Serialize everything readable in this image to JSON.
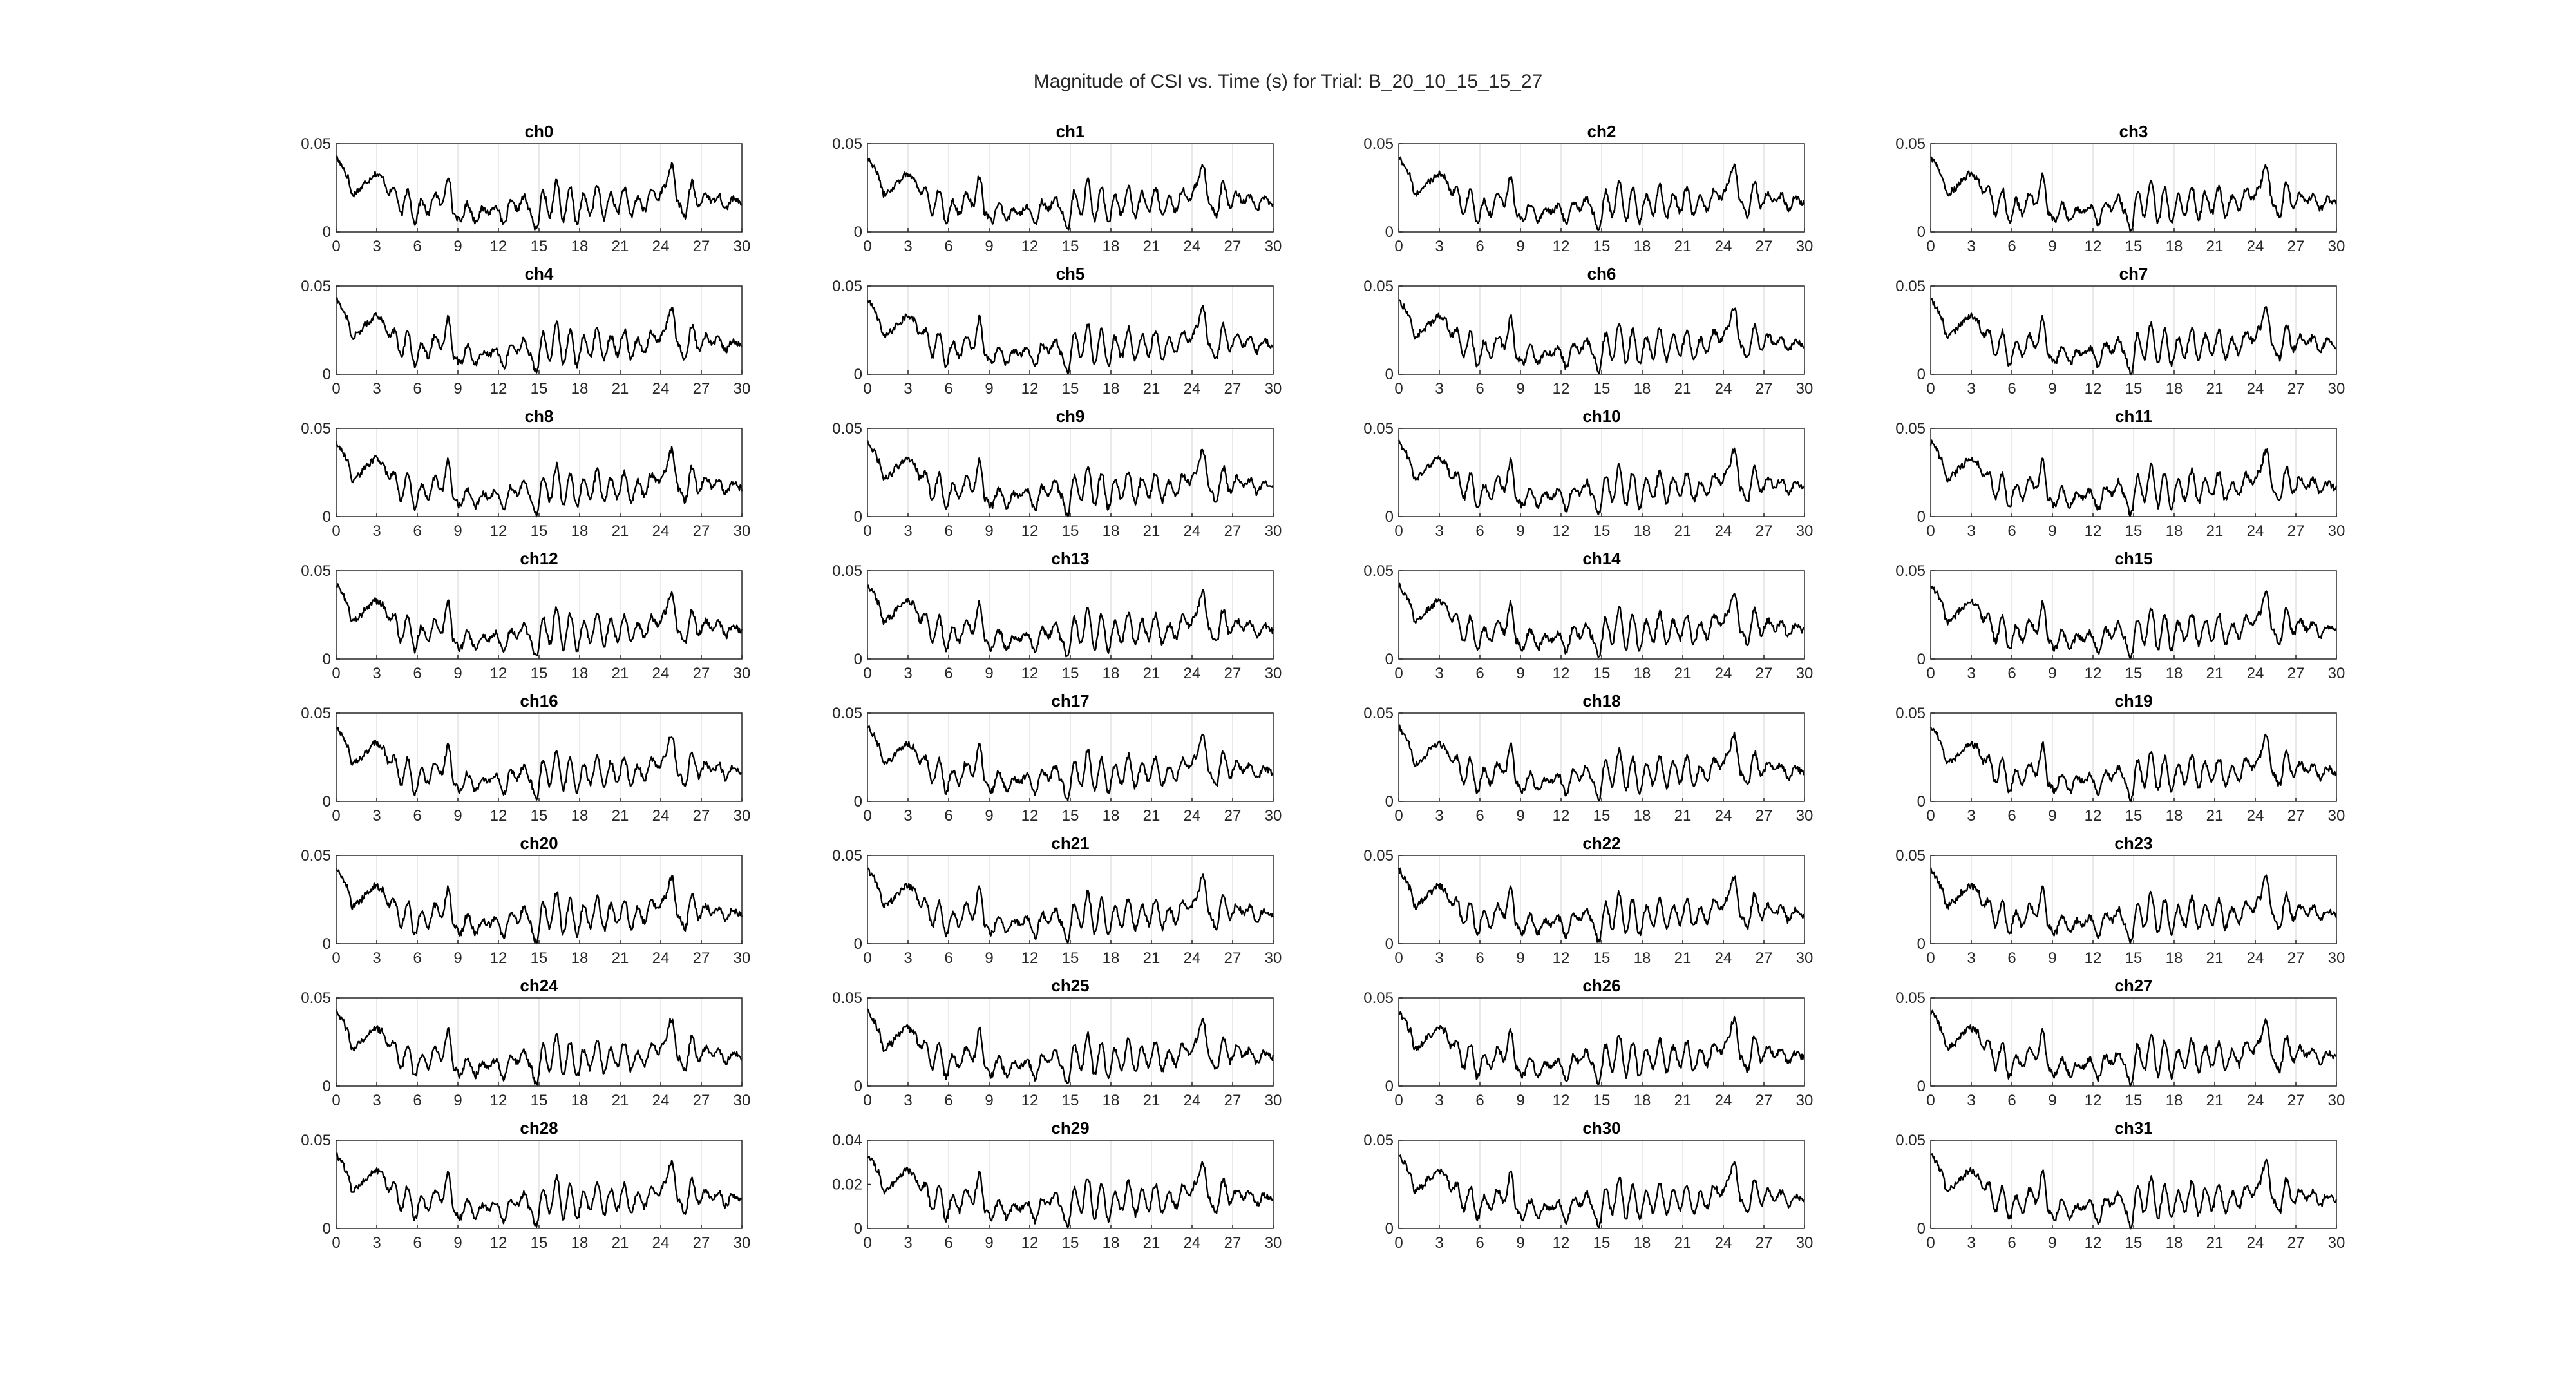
{
  "title": "Magnitude of CSI vs. Time (s) for Trial: B_20_10_15_15_27",
  "chart_data": {
    "type": "line",
    "suptitle": "Magnitude of CSI vs. Time (s) for Trial: B_20_10_15_15_27",
    "grid": "vertical gridlines at each x tick",
    "layout": "8 rows x 4 columns of subplots",
    "x": {
      "xlim": [
        0,
        30
      ],
      "xticks": [
        0,
        3,
        6,
        9,
        12,
        15,
        18,
        21,
        24,
        27,
        30
      ],
      "xtick_labels": [
        "0",
        "3",
        "6",
        "9",
        "12",
        "15",
        "18",
        "21",
        "24",
        "27",
        "30"
      ]
    },
    "shape_keypoints": {
      "t": [
        0,
        0.4,
        0.8,
        1.2,
        1.7,
        2.3,
        2.9,
        3.4,
        3.9,
        4.3,
        4.8,
        5.3,
        5.8,
        6.3,
        6.8,
        7.3,
        7.8,
        8.3,
        8.7,
        9.2,
        9.7,
        10.3,
        10.8,
        11.3,
        11.8,
        12.4,
        12.9,
        13.4,
        13.9,
        14.3,
        14.8,
        15.3,
        15.8,
        16.3,
        16.8,
        17.3,
        17.8,
        18.3,
        18.8,
        19.3,
        19.8,
        20.3,
        20.8,
        21.3,
        21.8,
        22.3,
        22.8,
        23.3,
        23.8,
        24.3,
        24.8,
        25.3,
        25.8,
        26.3,
        26.8,
        27.3,
        27.8,
        28.3,
        28.8,
        29.3,
        30
      ],
      "v": [
        0.042,
        0.038,
        0.032,
        0.021,
        0.024,
        0.029,
        0.033,
        0.031,
        0.022,
        0.025,
        0.01,
        0.024,
        0.005,
        0.018,
        0.01,
        0.022,
        0.015,
        0.032,
        0.01,
        0.006,
        0.016,
        0.006,
        0.013,
        0.011,
        0.015,
        0.004,
        0.017,
        0.013,
        0.02,
        0.012,
        0.001,
        0.023,
        0.009,
        0.029,
        0.006,
        0.025,
        0.005,
        0.021,
        0.01,
        0.026,
        0.008,
        0.022,
        0.011,
        0.025,
        0.009,
        0.02,
        0.012,
        0.024,
        0.019,
        0.026,
        0.038,
        0.016,
        0.009,
        0.028,
        0.014,
        0.022,
        0.017,
        0.021,
        0.013,
        0.019,
        0.016
      ]
    },
    "subplots": [
      {
        "title": "ch0",
        "ylim": [
          0,
          0.05
        ],
        "yticks": [
          "0",
          "0.05"
        ]
      },
      {
        "title": "ch1",
        "ylim": [
          0,
          0.05
        ],
        "yticks": [
          "0",
          "0.05"
        ]
      },
      {
        "title": "ch2",
        "ylim": [
          0,
          0.05
        ],
        "yticks": [
          "0",
          "0.05"
        ]
      },
      {
        "title": "ch3",
        "ylim": [
          0,
          0.05
        ],
        "yticks": [
          "0",
          "0.05"
        ]
      },
      {
        "title": "ch4",
        "ylim": [
          0,
          0.05
        ],
        "yticks": [
          "0",
          "0.05"
        ]
      },
      {
        "title": "ch5",
        "ylim": [
          0,
          0.05
        ],
        "yticks": [
          "0",
          "0.05"
        ]
      },
      {
        "title": "ch6",
        "ylim": [
          0,
          0.05
        ],
        "yticks": [
          "0",
          "0.05"
        ]
      },
      {
        "title": "ch7",
        "ylim": [
          0,
          0.05
        ],
        "yticks": [
          "0",
          "0.05"
        ]
      },
      {
        "title": "ch8",
        "ylim": [
          0,
          0.05
        ],
        "yticks": [
          "0",
          "0.05"
        ]
      },
      {
        "title": "ch9",
        "ylim": [
          0,
          0.05
        ],
        "yticks": [
          "0",
          "0.05"
        ]
      },
      {
        "title": "ch10",
        "ylim": [
          0,
          0.05
        ],
        "yticks": [
          "0",
          "0.05"
        ]
      },
      {
        "title": "ch11",
        "ylim": [
          0,
          0.05
        ],
        "yticks": [
          "0",
          "0.05"
        ]
      },
      {
        "title": "ch12",
        "ylim": [
          0,
          0.05
        ],
        "yticks": [
          "0",
          "0.05"
        ]
      },
      {
        "title": "ch13",
        "ylim": [
          0,
          0.05
        ],
        "yticks": [
          "0",
          "0.05"
        ]
      },
      {
        "title": "ch14",
        "ylim": [
          0,
          0.05
        ],
        "yticks": [
          "0",
          "0.05"
        ]
      },
      {
        "title": "ch15",
        "ylim": [
          0,
          0.05
        ],
        "yticks": [
          "0",
          "0.05"
        ]
      },
      {
        "title": "ch16",
        "ylim": [
          0,
          0.05
        ],
        "yticks": [
          "0",
          "0.05"
        ]
      },
      {
        "title": "ch17",
        "ylim": [
          0,
          0.05
        ],
        "yticks": [
          "0",
          "0.05"
        ]
      },
      {
        "title": "ch18",
        "ylim": [
          0,
          0.05
        ],
        "yticks": [
          "0",
          "0.05"
        ]
      },
      {
        "title": "ch19",
        "ylim": [
          0,
          0.05
        ],
        "yticks": [
          "0",
          "0.05"
        ]
      },
      {
        "title": "ch20",
        "ylim": [
          0,
          0.05
        ],
        "yticks": [
          "0",
          "0.05"
        ]
      },
      {
        "title": "ch21",
        "ylim": [
          0,
          0.05
        ],
        "yticks": [
          "0",
          "0.05"
        ]
      },
      {
        "title": "ch22",
        "ylim": [
          0,
          0.05
        ],
        "yticks": [
          "0",
          "0.05"
        ]
      },
      {
        "title": "ch23",
        "ylim": [
          0,
          0.05
        ],
        "yticks": [
          "0",
          "0.05"
        ]
      },
      {
        "title": "ch24",
        "ylim": [
          0,
          0.05
        ],
        "yticks": [
          "0",
          "0.05"
        ]
      },
      {
        "title": "ch25",
        "ylim": [
          0,
          0.05
        ],
        "yticks": [
          "0",
          "0.05"
        ]
      },
      {
        "title": "ch26",
        "ylim": [
          0,
          0.05
        ],
        "yticks": [
          "0",
          "0.05"
        ]
      },
      {
        "title": "ch27",
        "ylim": [
          0,
          0.05
        ],
        "yticks": [
          "0",
          "0.05"
        ]
      },
      {
        "title": "ch28",
        "ylim": [
          0,
          0.05
        ],
        "yticks": [
          "0",
          "0.05"
        ]
      },
      {
        "title": "ch29",
        "ylim": [
          0,
          0.04
        ],
        "yticks": [
          "0",
          "0.02",
          "0.04"
        ]
      },
      {
        "title": "ch30",
        "ylim": [
          0,
          0.05
        ],
        "yticks": [
          "0",
          "0.05"
        ]
      },
      {
        "title": "ch31",
        "ylim": [
          0,
          0.05
        ],
        "yticks": [
          "0",
          "0.05"
        ]
      }
    ]
  }
}
